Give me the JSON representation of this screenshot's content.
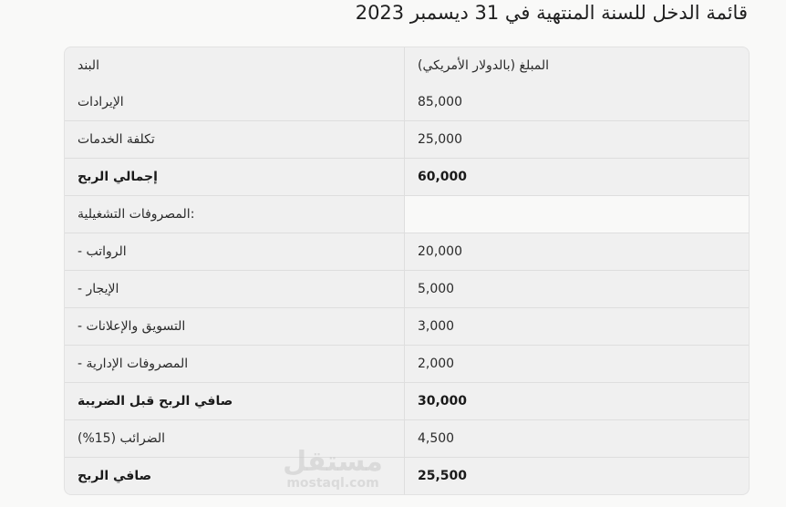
{
  "title": "قائمة الدخل للسنة المنتهية في 31 ديسمبر 2023",
  "table": {
    "headers": [
      "البند",
      "المبلغ (بالدولار الأمريكي)"
    ],
    "rows": [
      {
        "item": "الإيرادات",
        "amount": "85,000",
        "bold": false
      },
      {
        "item": "تكلفة الخدمات",
        "amount": "25,000",
        "bold": false
      },
      {
        "item": "إجمالي الربح",
        "amount": "60,000",
        "bold": true
      },
      {
        "item": "المصروفات التشغيلية:",
        "amount": "",
        "bold": false
      },
      {
        "item": "- الرواتب",
        "amount": "20,000",
        "bold": false
      },
      {
        "item": "- الإيجار",
        "amount": "5,000",
        "bold": false
      },
      {
        "item": "- التسويق والإعلانات",
        "amount": "3,000",
        "bold": false
      },
      {
        "item": "- المصروفات الإدارية",
        "amount": "2,000",
        "bold": false
      },
      {
        "item": "صافي الربح قبل الضريبة",
        "amount": "30,000",
        "bold": true
      },
      {
        "item": "الضرائب (15%)",
        "amount": "4,500",
        "bold": false
      },
      {
        "item": "صافي الربح",
        "amount": "25,500",
        "bold": true
      }
    ]
  },
  "watermark": {
    "arabic": "مستقل",
    "latin": "mostaql.com"
  }
}
